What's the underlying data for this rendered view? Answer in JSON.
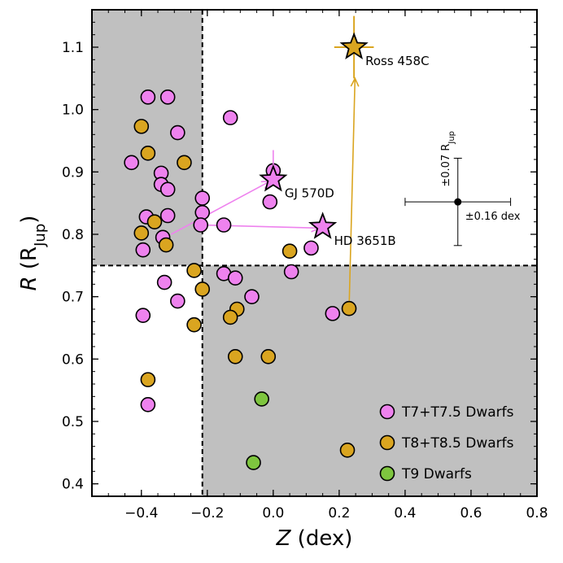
{
  "chart_data": {
    "type": "scatter",
    "xlabel_var": "Z",
    "xlabel_unit": " (dex)",
    "ylabel_var": "R",
    "ylabel_unit_open": " (R",
    "ylabel_unit_sub": "Jup",
    "ylabel_unit_close": ")",
    "xlim": [
      -0.55,
      0.8
    ],
    "ylim": [
      0.38,
      1.16
    ],
    "xticks": [
      -0.4,
      -0.2,
      0.0,
      0.2,
      0.4,
      0.6,
      0.8
    ],
    "xtick_labels": [
      "−0.4",
      "−0.2",
      "0.0",
      "0.2",
      "0.4",
      "0.6",
      "0.8"
    ],
    "yticks": [
      0.4,
      0.5,
      0.6,
      0.7,
      0.8,
      0.9,
      1.0,
      1.1
    ],
    "ytick_labels": [
      "0.4",
      "0.5",
      "0.6",
      "0.7",
      "0.8",
      "0.9",
      "1.0",
      "1.1"
    ],
    "divider": {
      "x": -0.215,
      "y": 0.75
    },
    "shaded_regions": [
      {
        "x": [
          -0.55,
          -0.215
        ],
        "y": [
          0.75,
          1.16
        ]
      },
      {
        "x": [
          -0.215,
          0.8
        ],
        "y": [
          0.38,
          0.75
        ]
      }
    ],
    "colors": {
      "t7": "#ee82ee",
      "t8": "#daa520",
      "t9": "#7ec53f",
      "shade": "#c0c0c0",
      "arrow_pink": "#ee82ee",
      "arrow_gold": "#daa520"
    },
    "series": [
      {
        "name": "T7+T7.5 Dwarfs",
        "key": "t7",
        "points": [
          [
            -0.38,
            1.02
          ],
          [
            -0.32,
            1.02
          ],
          [
            -0.13,
            0.987
          ],
          [
            -0.29,
            0.963
          ],
          [
            -0.43,
            0.915
          ],
          [
            -0.34,
            0.898
          ],
          [
            -0.34,
            0.88
          ],
          [
            -0.32,
            0.872
          ],
          [
            -0.215,
            0.858
          ],
          [
            -0.215,
            0.835
          ],
          [
            -0.385,
            0.828
          ],
          [
            -0.32,
            0.83
          ],
          [
            -0.22,
            0.815
          ],
          [
            -0.15,
            0.815
          ],
          [
            -0.335,
            0.795
          ],
          [
            -0.395,
            0.775
          ],
          [
            0.0,
            0.902
          ],
          [
            -0.01,
            0.852
          ],
          [
            0.115,
            0.778
          ],
          [
            0.055,
            0.74
          ],
          [
            -0.15,
            0.737
          ],
          [
            -0.115,
            0.73
          ],
          [
            -0.33,
            0.723
          ],
          [
            -0.065,
            0.7
          ],
          [
            -0.29,
            0.693
          ],
          [
            0.18,
            0.673
          ],
          [
            -0.395,
            0.67
          ],
          [
            -0.38,
            0.527
          ]
        ]
      },
      {
        "name": "T8+T8.5 Dwarfs",
        "key": "t8",
        "points": [
          [
            -0.4,
            0.973
          ],
          [
            -0.38,
            0.93
          ],
          [
            -0.27,
            0.915
          ],
          [
            -0.36,
            0.82
          ],
          [
            -0.4,
            0.802
          ],
          [
            -0.325,
            0.783
          ],
          [
            0.05,
            0.773
          ],
          [
            -0.24,
            0.742
          ],
          [
            -0.215,
            0.712
          ],
          [
            -0.11,
            0.68
          ],
          [
            -0.13,
            0.667
          ],
          [
            -0.24,
            0.655
          ],
          [
            0.23,
            0.681
          ],
          [
            -0.115,
            0.604
          ],
          [
            -0.015,
            0.604
          ],
          [
            -0.38,
            0.567
          ],
          [
            0.225,
            0.454
          ]
        ]
      },
      {
        "name": "T9 Dwarfs",
        "key": "t9",
        "points": [
          [
            -0.035,
            0.536
          ],
          [
            -0.06,
            0.434
          ]
        ]
      }
    ],
    "stars": [
      {
        "name": "GJ 570D",
        "x": 0.0,
        "y": 0.888,
        "color": "#ee82ee",
        "errbar_top": 0.935
      },
      {
        "name": "HD 3651B",
        "x": 0.15,
        "y": 0.812,
        "color": "#ee82ee"
      },
      {
        "name": "Ross 458C",
        "x": 0.245,
        "y": 1.1,
        "color": "#daa520",
        "xerr": 0.06,
        "yerr": 0.05
      }
    ],
    "arrows": [
      {
        "from": [
          -0.31,
          0.8
        ],
        "to": [
          -0.01,
          0.885
        ],
        "color": "#ee82ee"
      },
      {
        "from": [
          -0.215,
          0.815
        ],
        "to": [
          0.14,
          0.81
        ],
        "color": "#ee82ee"
      },
      {
        "from": [
          0.23,
          0.68
        ],
        "to": [
          0.248,
          1.05
        ],
        "color": "#daa520"
      }
    ],
    "error_bar_example": {
      "x": 0.56,
      "y": 0.852,
      "xerr": 0.16,
      "yerr": 0.07,
      "xerr_label": "±0.16 dex",
      "yerr_label_main": "±0.07 R",
      "yerr_label_sub": "Jup"
    },
    "legend_position": "lower-right"
  }
}
